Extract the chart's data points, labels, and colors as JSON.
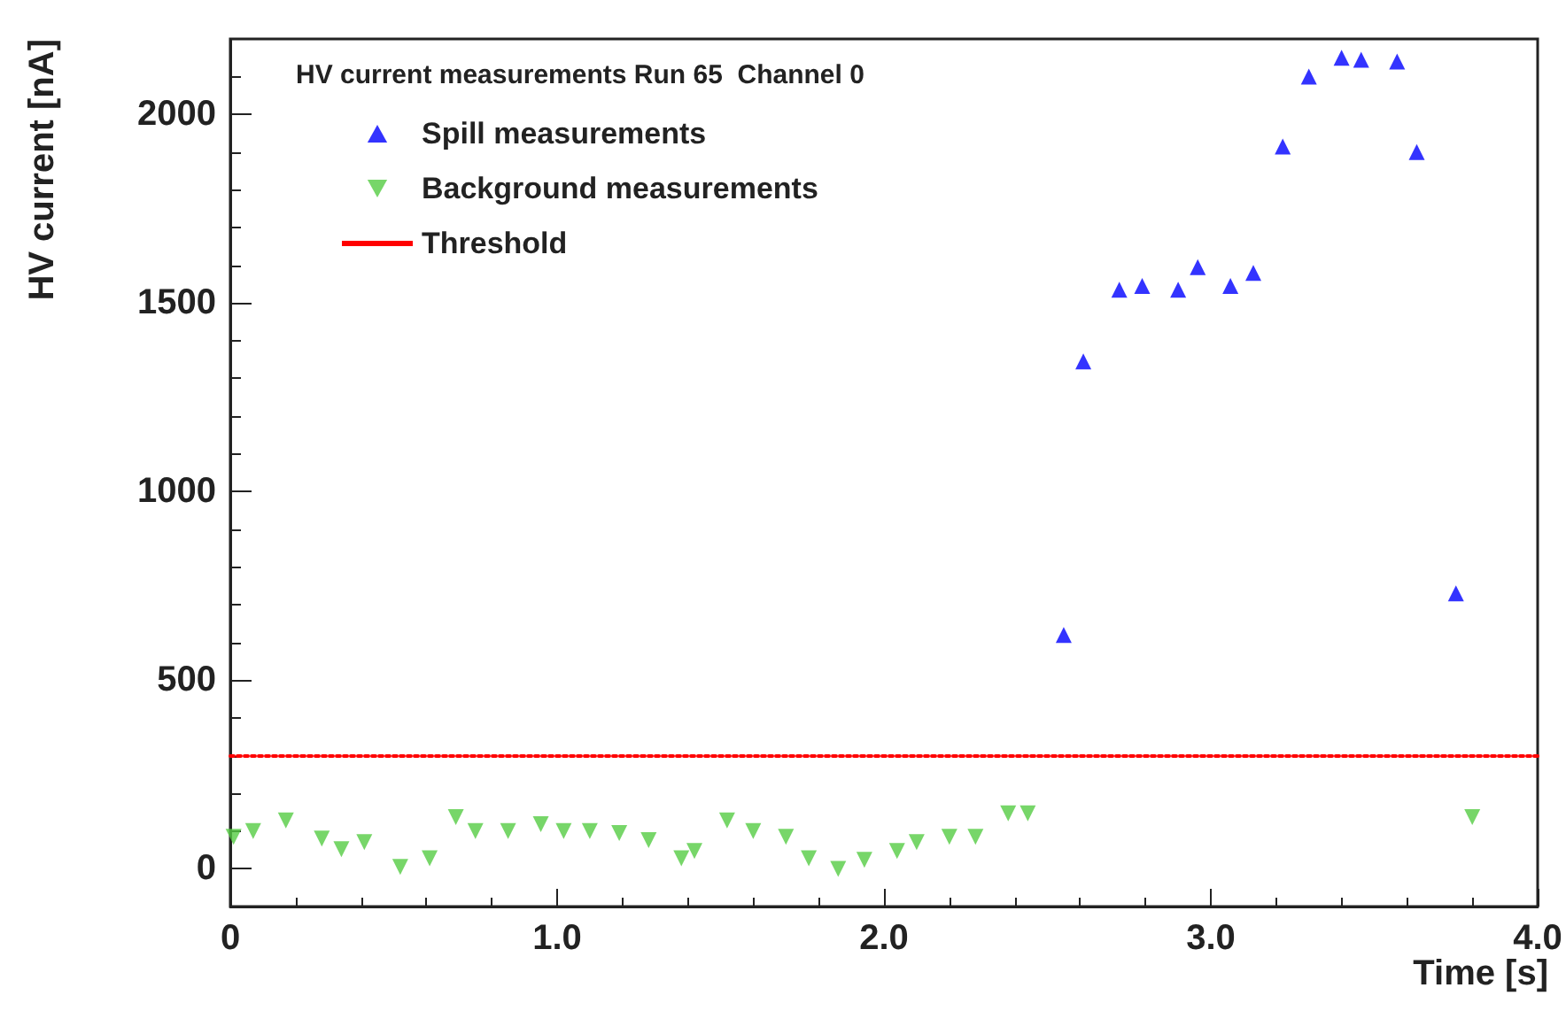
{
  "chart_data": {
    "type": "scatter",
    "legend_title": "HV current measurements Run 65  Channel 0",
    "xlabel": "Time [s]",
    "ylabel": "HV current [nA]",
    "xlim": [
      0,
      4
    ],
    "ylim": [
      -100,
      2200
    ],
    "xticks": [
      0,
      {
        "value": 1,
        "label": "1.0"
      },
      {
        "value": 2,
        "label": "2.0"
      },
      {
        "value": 3,
        "label": "3.0"
      },
      {
        "value": 4,
        "label": "4.0"
      }
    ],
    "yticks": [
      0,
      500,
      1000,
      1500,
      2000
    ],
    "grid": false,
    "legend": "top left",
    "series": [
      {
        "name": "Spill measurements",
        "color": "#0000ff",
        "marker": "triangle",
        "x": [
          2.55,
          2.61,
          2.72,
          2.79,
          2.9,
          2.96,
          3.06,
          3.13,
          3.22,
          3.3,
          3.4,
          3.46,
          3.57,
          3.63,
          3.75
        ],
        "values": [
          620,
          1345,
          1535,
          1545,
          1535,
          1595,
          1545,
          1580,
          1915,
          2100,
          2150,
          2145,
          2140,
          1900,
          730
        ]
      },
      {
        "name": "Background measurements",
        "color": "#55cc44",
        "marker": "triangle_down",
        "x": [
          0.01,
          0.07,
          0.17,
          0.28,
          0.34,
          0.41,
          0.52,
          0.61,
          0.69,
          0.75,
          0.85,
          0.95,
          1.02,
          1.1,
          1.19,
          1.28,
          1.38,
          1.42,
          1.52,
          1.6,
          1.7,
          1.77,
          1.86,
          1.94,
          2.04,
          2.1,
          2.2,
          2.28,
          2.38,
          2.44,
          3.8
        ],
        "values": [
          85,
          100,
          128,
          80,
          52,
          71,
          5,
          28,
          137,
          100,
          100,
          118,
          100,
          100,
          95,
          76,
          28,
          47,
          128,
          100,
          85,
          28,
          0,
          24,
          47,
          71,
          85,
          85,
          147,
          147,
          137
        ]
      }
    ],
    "ref_lines": [
      {
        "axis": "y",
        "value": 300,
        "label": "Threshold",
        "color": "#ff0000",
        "line_style": "dotted"
      }
    ]
  }
}
